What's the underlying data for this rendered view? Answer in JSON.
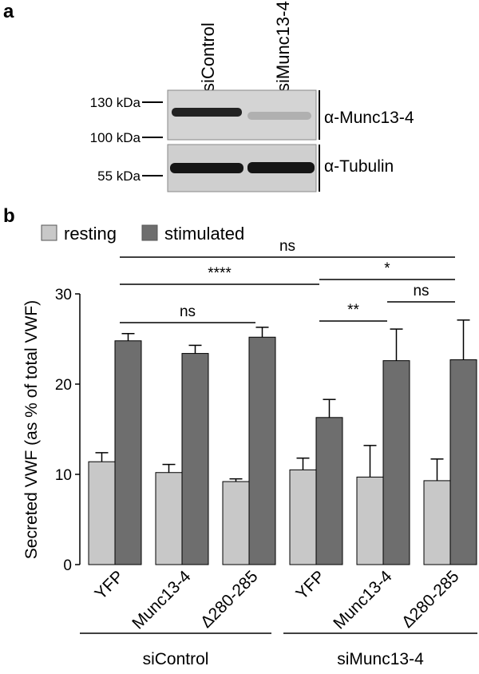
{
  "panel_a": {
    "letter": "a",
    "lanes": [
      "siControl",
      "siMunc13-4"
    ],
    "markers": [
      "130 kDa",
      "100 kDa",
      "55 kDa"
    ],
    "antibodies": [
      "α-Munc13-4",
      "α-Tubulin"
    ]
  },
  "chart_data": {
    "type": "bar",
    "letter": "b",
    "y_label": "Secreted VWF (as % of total VWF)",
    "categories": [
      "YFP",
      "Munc13-4",
      "Δ280-285",
      "YFP",
      "Munc13-4",
      "Δ280-285"
    ],
    "groups": [
      "siControl",
      "siMunc13-4"
    ],
    "series": [
      {
        "name": "resting",
        "color": "#c8c8c8",
        "values": [
          11.4,
          10.2,
          9.2,
          10.5,
          9.7,
          9.3
        ],
        "errors": [
          1.0,
          0.9,
          0.3,
          1.3,
          3.5,
          2.4
        ]
      },
      {
        "name": "stimulated",
        "color": "#6e6e6e",
        "values": [
          24.8,
          23.4,
          25.2,
          16.3,
          22.6,
          22.7
        ],
        "errors": [
          0.8,
          0.9,
          1.1,
          2.0,
          3.5,
          4.4
        ]
      }
    ],
    "ylim": [
      0,
      30
    ],
    "yticks": [
      0,
      10,
      20,
      30
    ],
    "annotations": [
      "ns",
      "****",
      "ns",
      "*",
      "**",
      "ns"
    ]
  }
}
